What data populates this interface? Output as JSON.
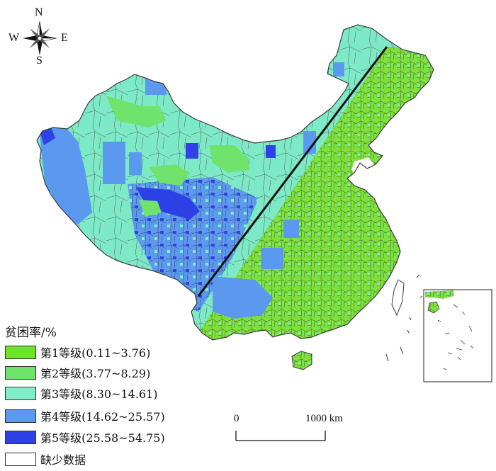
{
  "compass": {
    "north": "N",
    "south": "S",
    "east": "E",
    "west": "W"
  },
  "legend": {
    "title": "贫困率/%",
    "items": [
      {
        "label": "第1等级(0.11~3.76)",
        "color": "#6ce42a"
      },
      {
        "label": "第2等级(3.77~8.29)",
        "color": "#6fe36b"
      },
      {
        "label": "第3等级(8.30~14.61)",
        "color": "#7feec8"
      },
      {
        "label": "第4等级(14.62~25.57)",
        "color": "#5b98ef"
      },
      {
        "label": "第5等级(25.58~54.75)",
        "color": "#2d41e6"
      },
      {
        "label": "缺少数据",
        "color": "#ffffff"
      }
    ]
  },
  "scale_bar": {
    "start_label": "0",
    "end_label": "1000 km"
  },
  "colors": {
    "boundary": "#3a3a3a",
    "divider_line": "#111111"
  }
}
